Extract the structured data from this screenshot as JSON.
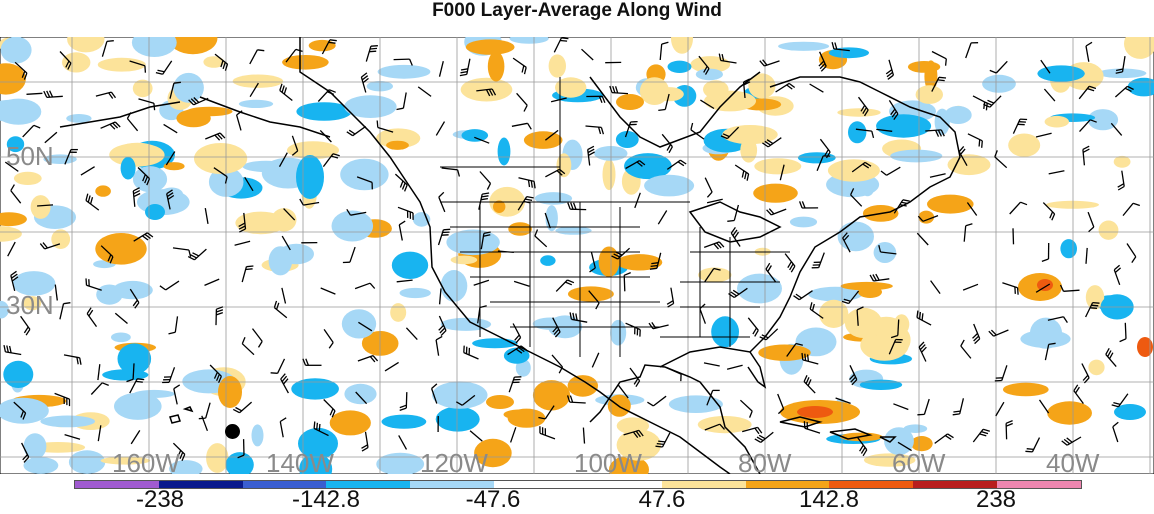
{
  "title": "F000 Layer-Average Along Wind",
  "lat_labels": [
    "50N",
    "30N"
  ],
  "lon_labels": [
    "160W",
    "140W",
    "120W",
    "100W",
    "80W",
    "60W",
    "40W"
  ],
  "colorbar": {
    "colors": [
      "#a05ad0",
      "#0a1a8c",
      "#3a5ed0",
      "#18b4f0",
      "#a6d8f6",
      "#ffffff",
      "#ffffff",
      "#fce39a",
      "#f5a418",
      "#ee5a10",
      "#b81e1e",
      "#ee86b0"
    ],
    "tick_labels": [
      "-238",
      "-142.8",
      "-47.6",
      "47.6",
      "142.8",
      "238"
    ]
  },
  "chart_data": {
    "type": "heatmap",
    "title": "F000 Layer-Average Along Wind",
    "x_ticks": [
      "160W",
      "140W",
      "120W",
      "100W",
      "80W",
      "60W",
      "40W"
    ],
    "y_ticks": [
      "50N",
      "30N"
    ],
    "legend_levels": [
      -238,
      -142.8,
      -47.6,
      47.6,
      142.8,
      238
    ],
    "grid": true,
    "legend_placement": "bottom"
  }
}
